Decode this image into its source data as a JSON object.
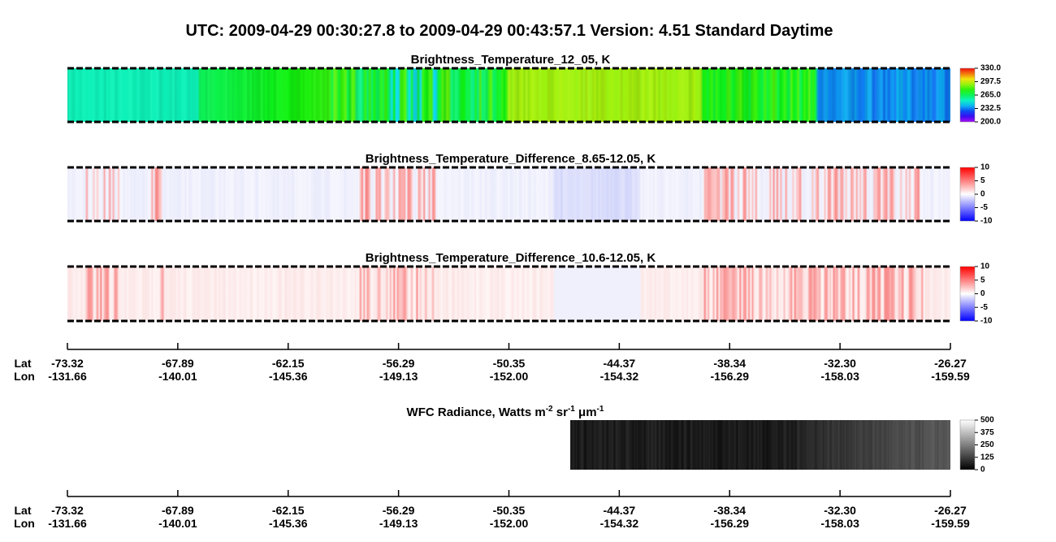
{
  "title": "UTC:  2009-04-29   00:30:27.8  to  2009-04-29   00:43:57.1    Version: 4.51  Standard Daytime",
  "panels": [
    {
      "title": "Brightness_Temperature_12_05, K",
      "colorbar": [
        "330.0",
        "297.5",
        "265.0",
        "232.5",
        "200.0"
      ]
    },
    {
      "title": "Brightness_Temperature_Difference_8.65-12.05, K",
      "colorbar": [
        "10",
        "5",
        "0",
        "-5",
        "-10"
      ]
    },
    {
      "title": "Brightness_Temperature_Difference_10.6-12.05, K",
      "colorbar": [
        "10",
        "5",
        "0",
        "-5",
        "-10"
      ]
    }
  ],
  "wfc": {
    "title": [
      "WFC Radiance, Watts m",
      "-2",
      " sr",
      "-1",
      " μm",
      "-1"
    ],
    "colorbar": [
      "500",
      "375",
      "250",
      "125",
      "0"
    ]
  },
  "axis": {
    "lat_label": "Lat",
    "lon_label": "Lon",
    "lat": [
      "-73.32",
      "-67.89",
      "-62.15",
      "-56.29",
      "-50.35",
      "-44.37",
      "-38.34",
      "-32.30",
      "-26.27"
    ],
    "lon": [
      "-131.66",
      "-140.01",
      "-145.36",
      "-149.13",
      "-152.00",
      "-154.32",
      "-156.29",
      "-158.03",
      "-159.59"
    ]
  }
}
